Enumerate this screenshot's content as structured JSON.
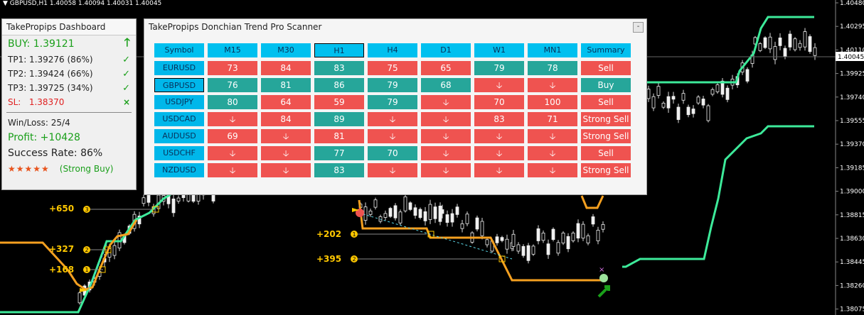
{
  "chart": {
    "title": "GBPUSD,H1  1.40058 1.40094 1.40031 1.40045",
    "price_axis": [
      "1.40480",
      "1.40295",
      "1.40110",
      "1.39925",
      "1.39740",
      "1.39555",
      "1.39370",
      "1.39185",
      "1.39000",
      "1.38815",
      "1.38630",
      "1.38445",
      "1.38260",
      "1.38075"
    ],
    "current_price": "1.40045",
    "trade_labels": [
      "+650",
      "+327",
      "+168",
      "+202",
      "+395"
    ],
    "markers": [
      "3",
      "2",
      "1",
      "1",
      "2"
    ],
    "colors": {
      "trend_green": "#3dea9a",
      "trend_orange": "#f5a020",
      "candle": "#f0f0f0"
    }
  },
  "dashboard": {
    "title": "TakePropips Dashboard",
    "buy": "BUY: 1.39121",
    "tp1": "TP1: 1.39276 (86%)",
    "tp2": "TP2: 1.39424 (66%)",
    "tp3": "TP3: 1.39725 (34%)",
    "sl_label": "SL:",
    "sl_value": "1.38370",
    "winloss": "Win/Loss: 25/4",
    "profit": "Profit: +10428",
    "success": "Success Rate: 86%",
    "stars": "★★★★★",
    "rating": "(Strong Buy)"
  },
  "scanner": {
    "title": "TakePropips Donchian Trend Pro Scanner",
    "minimize": "-",
    "headers": [
      "Symbol",
      "M15",
      "M30",
      "H1",
      "H4",
      "D1",
      "W1",
      "MN1",
      "Summary"
    ],
    "rows": [
      {
        "symbol": "EURUSD",
        "cells": [
          {
            "v": "73",
            "c": "red"
          },
          {
            "v": "84",
            "c": "red"
          },
          {
            "v": "83",
            "c": "green"
          },
          {
            "v": "75",
            "c": "red"
          },
          {
            "v": "65",
            "c": "red"
          },
          {
            "v": "79",
            "c": "green"
          },
          {
            "v": "78",
            "c": "green"
          }
        ],
        "summary": "Sell",
        "sc": "red"
      },
      {
        "symbol": "GBPUSD",
        "cells": [
          {
            "v": "76",
            "c": "green"
          },
          {
            "v": "81",
            "c": "green"
          },
          {
            "v": "86",
            "c": "green"
          },
          {
            "v": "79",
            "c": "green"
          },
          {
            "v": "68",
            "c": "green"
          },
          {
            "v": "🡣",
            "c": "red"
          },
          {
            "v": "🡣",
            "c": "red"
          }
        ],
        "summary": "Buy",
        "sc": "green"
      },
      {
        "symbol": "USDJPY",
        "cells": [
          {
            "v": "80",
            "c": "green"
          },
          {
            "v": "64",
            "c": "red"
          },
          {
            "v": "59",
            "c": "red"
          },
          {
            "v": "79",
            "c": "green"
          },
          {
            "v": "🡣",
            "c": "red"
          },
          {
            "v": "70",
            "c": "red"
          },
          {
            "v": "100",
            "c": "red"
          }
        ],
        "summary": "Sell",
        "sc": "red"
      },
      {
        "symbol": "USDCAD",
        "cells": [
          {
            "v": "🡣",
            "c": "red"
          },
          {
            "v": "84",
            "c": "red"
          },
          {
            "v": "89",
            "c": "green"
          },
          {
            "v": "🡣",
            "c": "red"
          },
          {
            "v": "🡣",
            "c": "red"
          },
          {
            "v": "83",
            "c": "red"
          },
          {
            "v": "71",
            "c": "red"
          }
        ],
        "summary": "Strong Sell",
        "sc": "red"
      },
      {
        "symbol": "AUDUSD",
        "cells": [
          {
            "v": "69",
            "c": "red"
          },
          {
            "v": "🡣",
            "c": "red"
          },
          {
            "v": "81",
            "c": "red"
          },
          {
            "v": "🡣",
            "c": "red"
          },
          {
            "v": "🡣",
            "c": "red"
          },
          {
            "v": "🡣",
            "c": "red"
          },
          {
            "v": "🡣",
            "c": "red"
          }
        ],
        "summary": "Strong Sell",
        "sc": "red"
      },
      {
        "symbol": "USDCHF",
        "cells": [
          {
            "v": "🡣",
            "c": "red"
          },
          {
            "v": "🡣",
            "c": "red"
          },
          {
            "v": "77",
            "c": "green"
          },
          {
            "v": "70",
            "c": "green"
          },
          {
            "v": "🡣",
            "c": "red"
          },
          {
            "v": "🡣",
            "c": "red"
          },
          {
            "v": "🡣",
            "c": "red"
          }
        ],
        "summary": "Sell",
        "sc": "red"
      },
      {
        "symbol": "NZDUSD",
        "cells": [
          {
            "v": "🡣",
            "c": "red"
          },
          {
            "v": "🡣",
            "c": "red"
          },
          {
            "v": "83",
            "c": "green"
          },
          {
            "v": "🡣",
            "c": "red"
          },
          {
            "v": "🡣",
            "c": "red"
          },
          {
            "v": "🡣",
            "c": "red"
          },
          {
            "v": "🡣",
            "c": "red"
          }
        ],
        "summary": "Strong Sell",
        "sc": "red"
      }
    ]
  }
}
